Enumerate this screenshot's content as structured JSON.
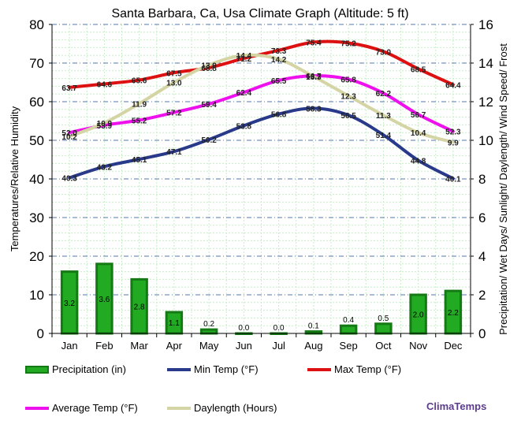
{
  "chart_data": {
    "type": "bar+line",
    "title": "Santa Barbara, Ca, Usa Climate Graph (Altitude: 5 ft)",
    "ylabel_left": "Temperatures/Relative Humidity",
    "ylabel_right": "Precipitation/ Wet Days/ Sunlight/ Daylength/ Wind Speed/ Frost",
    "categories": [
      "Jan",
      "Feb",
      "Mar",
      "Apr",
      "May",
      "Jun",
      "Jul",
      "Aug",
      "Sep",
      "Oct",
      "Nov",
      "Dec"
    ],
    "ylim_left": [
      0,
      80
    ],
    "ylim_right": [
      0,
      16
    ],
    "yticks_left": [
      "0",
      "10",
      "20",
      "30",
      "40",
      "50",
      "60",
      "70",
      "80"
    ],
    "yticks_right": [
      "0",
      "2",
      "4",
      "6",
      "8",
      "10",
      "12",
      "14",
      "16"
    ],
    "series": [
      {
        "key": "precip",
        "name": "Precipitation (in)",
        "axis": "right",
        "kind": "bar",
        "color": "#22aa22",
        "edge": "#157a15",
        "values": [
          3.2,
          3.6,
          2.8,
          1.1,
          0.2,
          0.0,
          0.0,
          0.1,
          0.4,
          0.5,
          2.0,
          2.2
        ],
        "labels": [
          "3.2",
          "3.6",
          "2.8",
          "1.1",
          "0.2",
          "0.0",
          "0.0",
          "0.1",
          "0.4",
          "0.5",
          "2.0",
          "2.2"
        ]
      },
      {
        "key": "mintemp",
        "name": "Min Temp (°F)",
        "axis": "left",
        "kind": "line",
        "color": "#2a3a8a",
        "values": [
          40.3,
          43.2,
          45.1,
          47.1,
          50.2,
          53.8,
          56.8,
          58.3,
          56.5,
          51.4,
          44.8,
          40.1
        ],
        "labels": [
          "40.3",
          "43.2",
          "45.1",
          "47.1",
          "50.2",
          "53.8",
          "56.8",
          "58.3",
          "56.5",
          "51.4",
          "44.8",
          "40.1"
        ]
      },
      {
        "key": "maxtemp",
        "name": "Max Temp (°F)",
        "axis": "left",
        "kind": "line",
        "color": "#dd1111",
        "values": [
          63.7,
          64.6,
          65.6,
          67.5,
          68.8,
          71.2,
          73.3,
          75.4,
          75.2,
          73.0,
          68.5,
          64.4
        ],
        "labels": [
          "63.7",
          "64.6",
          "65.6",
          "67.5",
          "68.8",
          "71.2",
          "73.3",
          "75.4",
          "75.2",
          "73.0",
          "68.5",
          "64.4"
        ]
      },
      {
        "key": "avgtemp",
        "name": "Average Temp (°F)",
        "axis": "left",
        "kind": "line",
        "color": "#ee11ee",
        "values": [
          52.0,
          53.9,
          55.2,
          57.2,
          59.4,
          62.4,
          65.5,
          66.7,
          65.8,
          62.2,
          56.7,
          52.3
        ],
        "labels": [
          "52.0",
          "53.9",
          "55.2",
          "57.2",
          "59.4",
          "62.4",
          "65.5",
          "66.7",
          "65.8",
          "62.2",
          "56.7",
          "52.3"
        ]
      },
      {
        "key": "daylength",
        "name": "Daylength (Hours)",
        "axis": "right",
        "kind": "line",
        "color": "#d4d4a4",
        "values": [
          10.2,
          10.9,
          11.9,
          13.0,
          13.9,
          14.4,
          14.2,
          13.3,
          12.3,
          11.3,
          10.4,
          9.9
        ],
        "labels": [
          "10.2",
          "10.9",
          "11.9",
          "13.0",
          "13.9",
          "14.4",
          "14.2",
          "13.3",
          "12.3",
          "11.3",
          "10.4",
          "9.9"
        ]
      }
    ],
    "grid": true,
    "legend_position": "bottom"
  },
  "legend": [
    {
      "label": "Precipitation (in)"
    },
    {
      "label": "Min Temp (°F)"
    },
    {
      "label": "Max Temp (°F)"
    },
    {
      "label": "Average Temp (°F)"
    },
    {
      "label": "Daylength (Hours)"
    }
  ],
  "brand": "ClimaTemps"
}
